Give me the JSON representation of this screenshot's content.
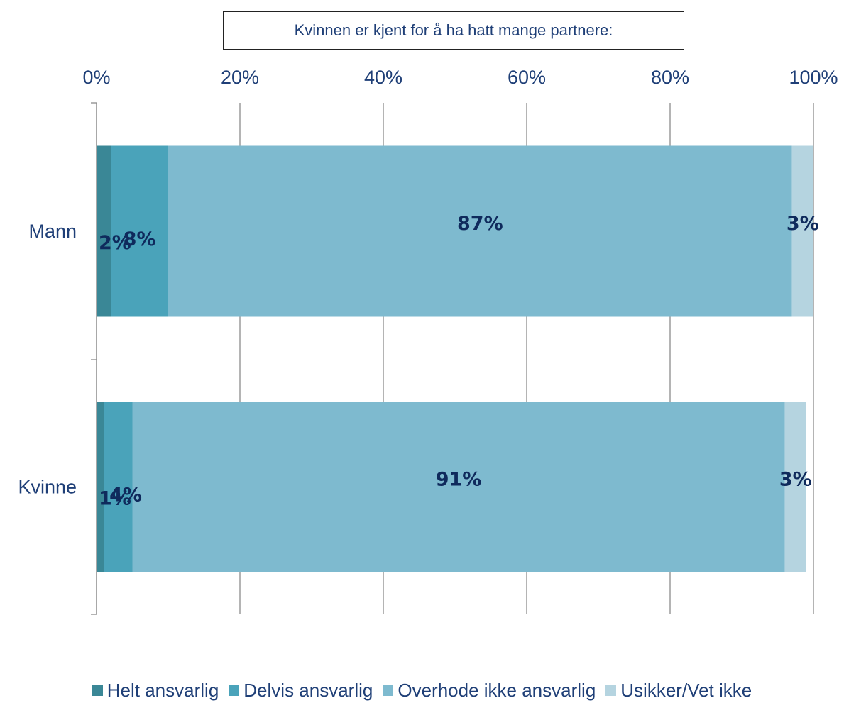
{
  "chart_data": {
    "type": "bar",
    "orientation": "horizontal",
    "stacked": true,
    "title": "Kvinnen er kjent for å ha hatt mange partnere:",
    "categories": [
      "Mann",
      "Kvinne"
    ],
    "series": [
      {
        "name": "Helt ansvarlig",
        "values": [
          2,
          1
        ],
        "labels": [
          "2%",
          "1%"
        ],
        "color": "#3A8796"
      },
      {
        "name": "Delvis ansvarlig",
        "values": [
          8,
          4
        ],
        "labels": [
          "8%",
          "4%"
        ],
        "color": "#4AA3BA"
      },
      {
        "name": "Overhode ikke ansvarlig",
        "values": [
          87,
          91
        ],
        "labels": [
          "87%",
          "91%"
        ],
        "color": "#7EBACF"
      },
      {
        "name": "Usikker/Vet ikke",
        "values": [
          3,
          3
        ],
        "labels": [
          "3%",
          "3%"
        ],
        "color": "#B5D4E0"
      }
    ],
    "xlim": [
      0,
      100
    ],
    "xticks": [
      "0%",
      "20%",
      "40%",
      "60%",
      "80%",
      "100%"
    ],
    "grid": true,
    "legend_position": "bottom"
  },
  "colors": {
    "label_text": "#0F2A5C",
    "axis_text": "#1F3F77",
    "grid": "#8C8C8C"
  }
}
